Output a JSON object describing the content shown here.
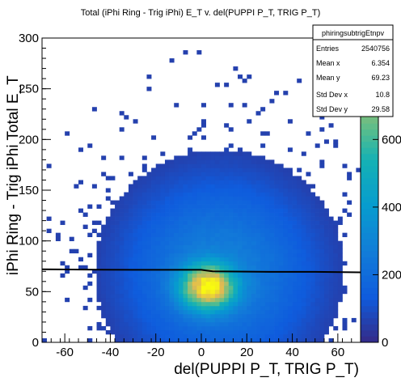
{
  "chart_data": {
    "type": "heatmap",
    "title": "Total (iPhi Ring - Trig iPhi) E_T v. del(PUPPI P_T, TRIG P_T)",
    "xlabel": "del(PUPPI P_T, TRIG P_T)",
    "ylabel": "iPhi Ring - Trig iPhi Total E_T",
    "xlim": [
      -70,
      70
    ],
    "ylim": [
      0,
      300
    ],
    "xticks": [
      "-60",
      "-40",
      "-20",
      "0",
      "20",
      "40",
      "60"
    ],
    "yticks": [
      "0",
      "50",
      "100",
      "150",
      "200",
      "250",
      "300"
    ],
    "colorbar": {
      "zlim": [
        0,
        900
      ],
      "ticks": [
        "0",
        "200",
        "400",
        "600"
      ]
    },
    "density_model": {
      "core": {
        "x": 3,
        "y": 55,
        "peak": 900
      },
      "broad": {
        "x": 8,
        "y": 70,
        "sx": 22,
        "sy": 48
      },
      "note": "2D histogram: dense core near x=3, y=55"
    },
    "profile_line": {
      "x": [
        -70,
        -30,
        0,
        5,
        30,
        50,
        70
      ],
      "y": [
        72,
        71.5,
        71.5,
        70,
        69.5,
        69.5,
        69
      ]
    },
    "stats": {
      "name": "phiringsubtrigEtnpv",
      "rows": [
        {
          "label": "Entries",
          "value": "2540756"
        },
        {
          "label": "Mean x",
          "value": "6.354"
        },
        {
          "label": "Mean y",
          "value": "69.23"
        },
        {
          "label": "Std Dev x",
          "value": "10.8"
        },
        {
          "label": "Std Dev y",
          "value": "29.58"
        }
      ]
    }
  }
}
